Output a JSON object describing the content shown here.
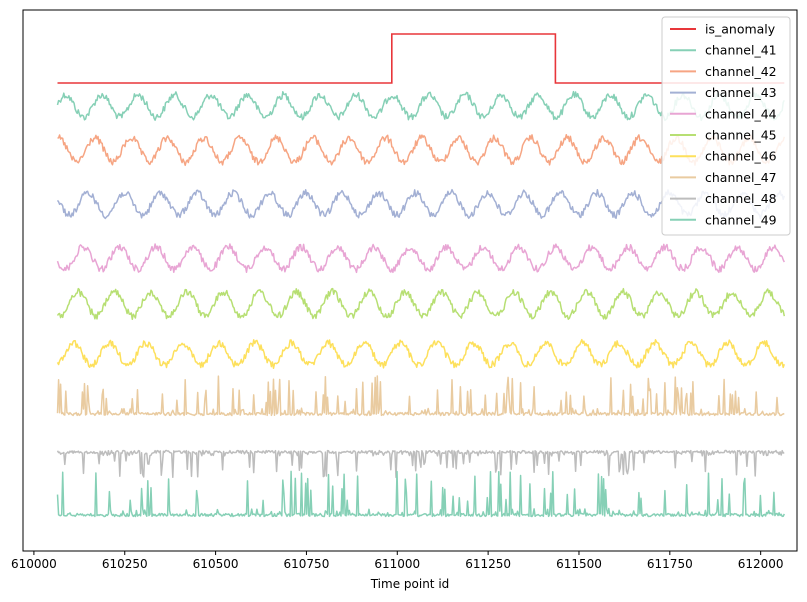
{
  "chart_data": {
    "type": "line",
    "xlabel": "Time point id",
    "ylabel": "",
    "xlim": [
      609970,
      612100
    ],
    "xticks": [
      610000,
      610250,
      610500,
      610750,
      611000,
      611250,
      611500,
      611750,
      612000
    ],
    "x_start": 610065,
    "x_end": 612065,
    "grid": false,
    "legend_position": "top-right",
    "note_y": "Series are vertically offset; y axis has no tick labels.",
    "anomaly": {
      "name": "is_anomaly",
      "color": "#e8363a",
      "segments": [
        {
          "x0": 610065,
          "x1": 610985,
          "value": 0
        },
        {
          "x0": 610985,
          "x1": 611435,
          "value": 1
        },
        {
          "x0": 611435,
          "x1": 612065,
          "value": 0
        }
      ]
    },
    "series": [
      {
        "name": "channel_41",
        "color": "#86d0b6",
        "kind": "sine",
        "period": 100,
        "phase": 0.2
      },
      {
        "name": "channel_42",
        "color": "#f6a583",
        "kind": "sine",
        "period": 100,
        "phase": 1.4
      },
      {
        "name": "channel_43",
        "color": "#a3b0d4",
        "kind": "sine",
        "period": 100,
        "phase": 2.6
      },
      {
        "name": "channel_44",
        "color": "#e8a5d4",
        "kind": "sine",
        "period": 100,
        "phase": 3.4
      },
      {
        "name": "channel_45",
        "color": "#b7df73",
        "kind": "sine",
        "period": 100,
        "phase": 4.3
      },
      {
        "name": "channel_46",
        "color": "#fde05c",
        "kind": "sine",
        "period": 100,
        "phase": 5.1
      },
      {
        "name": "channel_47",
        "color": "#e9cba0",
        "kind": "spiky"
      },
      {
        "name": "channel_48",
        "color": "#bdbdbd",
        "kind": "spiky"
      },
      {
        "name": "channel_49",
        "color": "#86d0b6",
        "kind": "spiky"
      }
    ]
  }
}
